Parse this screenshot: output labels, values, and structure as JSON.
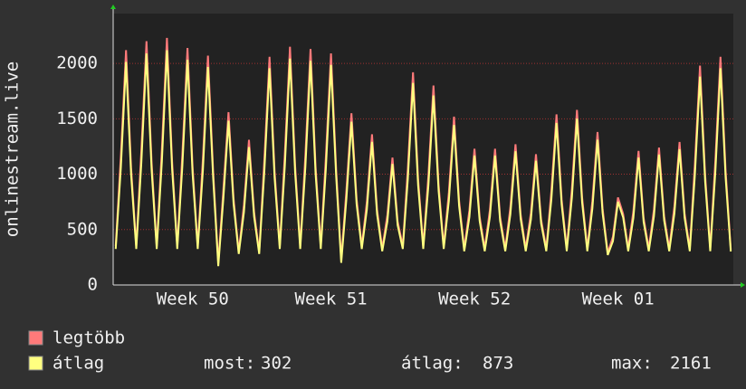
{
  "chart_data": {
    "type": "line",
    "y_label": "onlinestream.live",
    "categories": [
      null,
      null,
      null,
      null,
      null,
      null,
      null,
      null,
      null,
      null,
      null,
      null,
      null,
      null,
      null,
      "Week 50",
      null,
      null,
      null,
      null,
      null,
      null,
      null,
      null,
      null,
      null,
      null,
      null,
      null,
      null,
      null,
      null,
      null,
      null,
      null,
      null,
      null,
      null,
      null,
      null,
      null,
      null,
      "Week 51",
      null,
      null,
      null,
      null,
      null,
      null,
      null,
      null,
      null,
      null,
      null,
      null,
      null,
      null,
      null,
      null,
      null,
      null,
      null,
      null,
      null,
      null,
      null,
      null,
      null,
      null,
      null,
      "Week 52",
      null,
      null,
      null,
      null,
      null,
      null,
      null,
      null,
      null,
      null,
      null,
      null,
      null,
      null,
      null,
      null,
      null,
      null,
      null,
      null,
      null,
      null,
      null,
      null,
      null,
      null,
      null,
      "Week 01",
      null,
      null,
      null,
      null,
      null,
      null,
      null,
      null,
      null,
      null,
      null,
      null,
      null,
      null,
      null,
      null,
      null,
      null,
      null,
      null,
      null,
      null
    ],
    "series": [
      {
        "name": "legtöbb",
        "color": "#ff7a7a",
        "values": [
          350,
          1166,
          2120,
          1060,
          350,
          1210,
          2200,
          1100,
          350,
          1227,
          2230,
          1115,
          350,
          1177,
          2140,
          1070,
          350,
          1139,
          2070,
          1035,
          200,
          858,
          1560,
          780,
          300,
          721,
          1310,
          655,
          300,
          1133,
          2060,
          1030,
          350,
          1183,
          2150,
          1075,
          350,
          1172,
          2130,
          1065,
          350,
          1150,
          2090,
          1045,
          230,
          853,
          1550,
          775,
          350,
          748,
          1360,
          680,
          330,
          633,
          1150,
          575,
          350,
          1056,
          1920,
          960,
          350,
          990,
          1800,
          900,
          350,
          836,
          1520,
          760,
          330,
          677,
          1230,
          615,
          330,
          677,
          1230,
          615,
          330,
          699,
          1270,
          635,
          330,
          649,
          1180,
          590,
          330,
          847,
          1540,
          770,
          330,
          869,
          1580,
          790,
          330,
          759,
          1380,
          690,
          290,
          435,
          790,
          640,
          330,
          666,
          1210,
          605,
          330,
          682,
          1240,
          620,
          330,
          710,
          1290,
          645,
          330,
          1089,
          1980,
          990,
          330,
          1133,
          2060,
          1030,
          320
        ]
      },
      {
        "name": "átlag",
        "color": "#ffff80",
        "values": [
          325,
          1060,
          2014,
          996,
          325,
          1100,
          2090,
          1034,
          325,
          1115,
          2119,
          1048,
          325,
          1070,
          2033,
          1006,
          325,
          1035,
          1967,
          973,
          170,
          780,
          1482,
          733,
          280,
          655,
          1245,
          616,
          280,
          1030,
          1957,
          968,
          325,
          1075,
          2043,
          1011,
          325,
          1065,
          2024,
          1001,
          325,
          1045,
          1986,
          982,
          200,
          775,
          1473,
          729,
          325,
          680,
          1292,
          639,
          305,
          575,
          1093,
          541,
          325,
          960,
          1824,
          902,
          325,
          900,
          1710,
          846,
          325,
          760,
          1444,
          714,
          305,
          615,
          1169,
          578,
          305,
          615,
          1169,
          578,
          305,
          635,
          1207,
          597,
          305,
          590,
          1121,
          555,
          305,
          770,
          1463,
          724,
          305,
          790,
          1501,
          743,
          305,
          690,
          1311,
          649,
          270,
          395,
          751,
          610,
          305,
          605,
          1150,
          569,
          305,
          620,
          1178,
          583,
          305,
          645,
          1226,
          606,
          305,
          990,
          1881,
          931,
          305,
          1030,
          1957,
          968,
          302
        ]
      }
    ],
    "summary": [
      {
        "label": "most:",
        "value": 302
      },
      {
        "label": "átlag:",
        "value": 873
      },
      {
        "label": "max:",
        "value": 2161
      }
    ],
    "ylim": [
      0,
      2450
    ],
    "yticks": [
      0,
      500,
      1000,
      1500,
      2000
    ],
    "grid": true
  }
}
